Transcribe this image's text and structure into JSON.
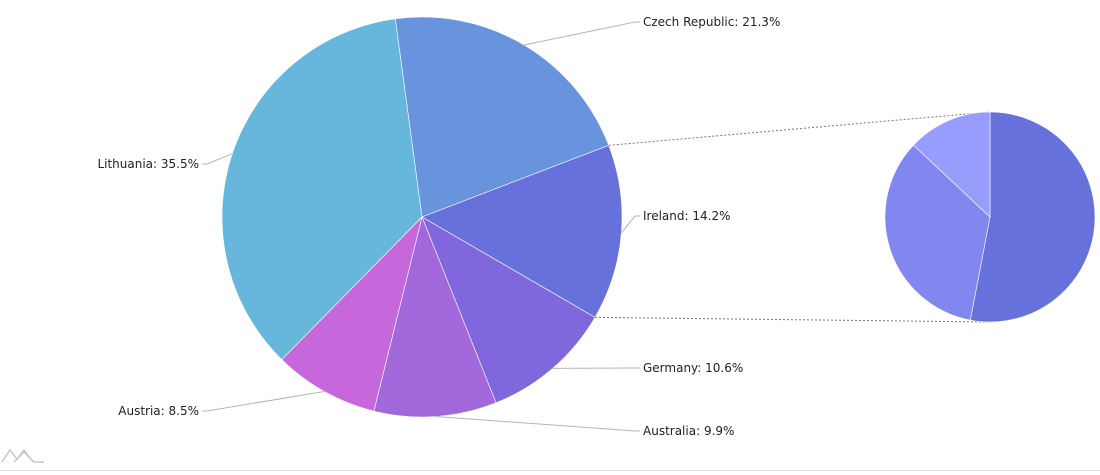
{
  "chart_data": {
    "type": "pie",
    "title": "",
    "slices": [
      {
        "label": "Czech Republic",
        "value": 21.3,
        "color": "#6794dc"
      },
      {
        "label": "Ireland",
        "value": 14.2,
        "color": "#6771dc"
      },
      {
        "label": "Germany",
        "value": 10.6,
        "color": "#8067dc"
      },
      {
        "label": "Australia",
        "value": 9.9,
        "color": "#a367dc"
      },
      {
        "label": "Austria",
        "value": 8.5,
        "color": "#c767dc"
      },
      {
        "label": "Lithuania",
        "value": 35.5,
        "color": "#67b7dc"
      }
    ],
    "label_format": "{label}: {value}%",
    "breakdown": {
      "of": "Ireland",
      "slices": [
        {
          "value": 53,
          "color": "#6771dc"
        },
        {
          "value": 34,
          "color": "#8287f0"
        },
        {
          "value": 13,
          "color": "#979dfd"
        }
      ]
    }
  }
}
